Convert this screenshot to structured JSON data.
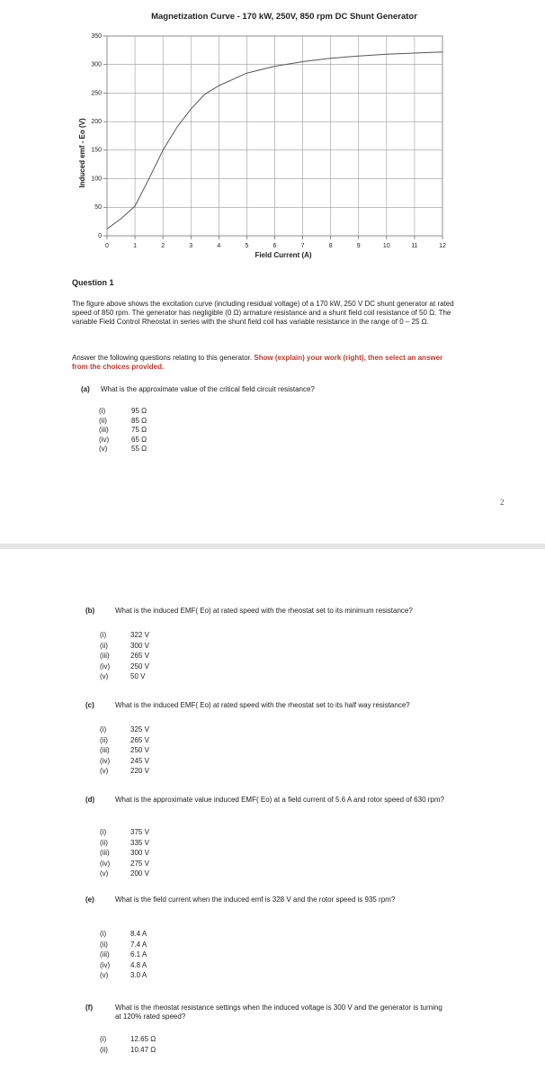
{
  "chart_data": {
    "type": "line",
    "title": "Magnetization Curve - 170 kW, 250V, 850 rpm DC Shunt Generator",
    "x_label": "Field Current (A)",
    "y_label": "Induced emf - Eo (V)",
    "x": [
      0,
      0.5,
      1,
      1.5,
      2,
      2.5,
      3,
      3.5,
      4,
      5,
      6,
      7,
      8,
      9,
      10,
      11,
      12
    ],
    "series": [
      {
        "name": "Eo",
        "color": "#555555",
        "values": [
          12,
          30,
          52,
          100,
          150,
          190,
          222,
          248,
          263,
          285,
          297,
          305,
          311,
          315,
          318,
          320,
          322
        ]
      }
    ],
    "xlim": [
      0,
      12
    ],
    "xticks": [
      0,
      1,
      2,
      3,
      4,
      5,
      6,
      7,
      8,
      9,
      10,
      11,
      12
    ],
    "ylim": [
      0,
      350
    ],
    "yticks": [
      0,
      50,
      100,
      150,
      200,
      250,
      300,
      350
    ],
    "grid": true
  },
  "question": {
    "heading": "Question 1",
    "paragraph": "The figure above shows the excitation curve (including residual voltage) of a 170 kW, 250 V DC shunt generator at rated speed of 850 rpm. The generator has negligible (0 Ω) armature resistance and a shunt field coil resistance of 50 Ω. The variable Field Control Rheostat in series with the shunt field coil has variable resistance in the range of 0 – 25 Ω.",
    "instruction": "Answer the following questions relating to this generator.",
    "instruction_emphasis": "Show (explain) your work (right), then select an answer from the choices provided.",
    "page_number": "2",
    "parts": [
      {
        "label": "(a)",
        "text": "What is the approximate value of the critical field circuit resistance?",
        "options": [
          [
            "(i)",
            "95 Ω"
          ],
          [
            "(ii)",
            "85 Ω"
          ],
          [
            "(iii)",
            "75 Ω"
          ],
          [
            "(iv)",
            "65 Ω"
          ],
          [
            "(v)",
            "55 Ω"
          ]
        ]
      },
      {
        "label": "(b)",
        "text": "What is the induced EMF( Eo) at rated speed with the rheostat set to its minimum resistance?",
        "options": [
          [
            "(i)",
            "322 V"
          ],
          [
            "(ii)",
            "300 V"
          ],
          [
            "(iii)",
            "265 V"
          ],
          [
            "(iv)",
            "250 V"
          ],
          [
            "(v)",
            "50 V"
          ]
        ]
      },
      {
        "label": "(c)",
        "text": "What is the induced EMF( Eo) at rated speed with the rheostat set to its half way resistance?",
        "options": [
          [
            "(i)",
            "325 V"
          ],
          [
            "(ii)",
            "265 V"
          ],
          [
            "(iii)",
            "250 V"
          ],
          [
            "(iv)",
            "245 V"
          ],
          [
            "(v)",
            "220 V"
          ]
        ]
      },
      {
        "label": "(d)",
        "text": "What is the approximate value induced EMF( Eo) at a field current of 5.6 A and rotor speed of 630 rpm?",
        "options": [
          [
            "(i)",
            "375 V"
          ],
          [
            "(ii)",
            "335 V"
          ],
          [
            "(iii)",
            "300 V"
          ],
          [
            "(iv)",
            "275 V"
          ],
          [
            "(v)",
            "200 V"
          ]
        ]
      },
      {
        "label": "(e)",
        "text": "What is the field current when the induced emf is 328 V and the rotor speed is 935 rpm?",
        "options": [
          [
            "(i)",
            "8.4 A"
          ],
          [
            "(ii)",
            "7.4 A"
          ],
          [
            "(iii)",
            "6.1 A"
          ],
          [
            "(iv)",
            "4.8 A"
          ],
          [
            "(v)",
            "3.0 A"
          ]
        ]
      },
      {
        "label": "(f)",
        "text": "What is the rheostat resistance settings when the induced voltage is 300 V and the generator is turning at 120% rated speed?",
        "options": [
          [
            "(i)",
            "12.65 Ω"
          ],
          [
            "(ii)",
            "10.47 Ω"
          ]
        ]
      }
    ]
  }
}
